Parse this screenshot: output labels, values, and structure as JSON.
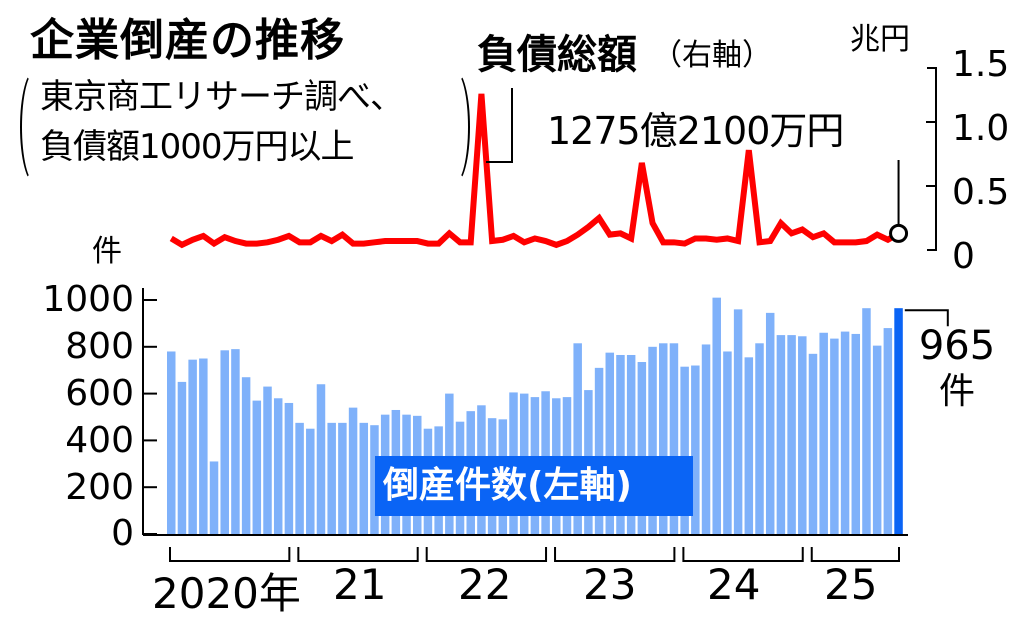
{
  "title": "企業倒産の推移",
  "source_lines": [
    "東京商工リサーチ調べ、",
    "負債額1000万円以上"
  ],
  "debt_series": {
    "label": "負債総額",
    "axis_note": "（右軸）",
    "unit": "兆円",
    "callout": "1275億2100万円",
    "color": "#ff0000"
  },
  "count_series": {
    "label": "倒産件数(左軸)",
    "unit": "件",
    "callout_value": "965",
    "callout_unit": "件",
    "color": "#7fb1fa",
    "highlight_color": "#0a64f5"
  },
  "left_axis": {
    "unit": "件",
    "ticks": [
      "1000",
      "800",
      "600",
      "400",
      "200",
      "0"
    ]
  },
  "right_axis": {
    "ticks": [
      "1.5",
      "1.0",
      "0.5",
      "0"
    ]
  },
  "x_axis": {
    "years": [
      "2020年",
      "21",
      "22",
      "23",
      "24",
      "25"
    ]
  },
  "chart_data": {
    "type": "bar+line",
    "title": "企業倒産の推移",
    "subtitle": "東京商工リサーチ調べ、負債額1000万円以上",
    "x": "monthly, 2020-01 to 2025-09",
    "categories_years": [
      "2020",
      "2021",
      "2022",
      "2023",
      "2024",
      "2025"
    ],
    "series": [
      {
        "name": "倒産件数(左軸)",
        "type": "bar",
        "axis": "left",
        "unit": "件",
        "ylim": [
          0,
          1000
        ],
        "values": [
          780,
          650,
          745,
          750,
          310,
          785,
          790,
          670,
          570,
          630,
          580,
          560,
          475,
          450,
          640,
          475,
          475,
          540,
          475,
          465,
          510,
          530,
          510,
          505,
          450,
          460,
          600,
          480,
          525,
          550,
          495,
          490,
          605,
          600,
          585,
          610,
          580,
          585,
          815,
          615,
          710,
          775,
          765,
          765,
          735,
          800,
          815,
          815,
          715,
          720,
          810,
          1010,
          780,
          960,
          755,
          815,
          945,
          850,
          850,
          845,
          770,
          860,
          835,
          865,
          855,
          965,
          805,
          880,
          965
        ]
      },
      {
        "name": "負債総額(右軸)",
        "type": "line",
        "axis": "right",
        "unit": "兆円",
        "ylim": [
          0,
          1.5
        ],
        "values": [
          0.09,
          0.04,
          0.08,
          0.11,
          0.05,
          0.1,
          0.07,
          0.05,
          0.05,
          0.06,
          0.08,
          0.11,
          0.06,
          0.06,
          0.11,
          0.07,
          0.12,
          0.05,
          0.05,
          0.06,
          0.07,
          0.07,
          0.07,
          0.07,
          0.05,
          0.05,
          0.13,
          0.06,
          0.06,
          1.22,
          0.07,
          0.08,
          0.11,
          0.06,
          0.09,
          0.07,
          0.04,
          0.07,
          0.12,
          0.18,
          0.25,
          0.12,
          0.13,
          0.09,
          0.68,
          0.21,
          0.06,
          0.06,
          0.05,
          0.09,
          0.09,
          0.08,
          0.09,
          0.07,
          0.78,
          0.06,
          0.07,
          0.21,
          0.13,
          0.16,
          0.1,
          0.13,
          0.06,
          0.06,
          0.06,
          0.07,
          0.12,
          0.08,
          0.13
        ]
      }
    ],
    "annotations": [
      "1275億2100万円",
      "965件"
    ],
    "grid": false,
    "legend": "inline labels"
  }
}
